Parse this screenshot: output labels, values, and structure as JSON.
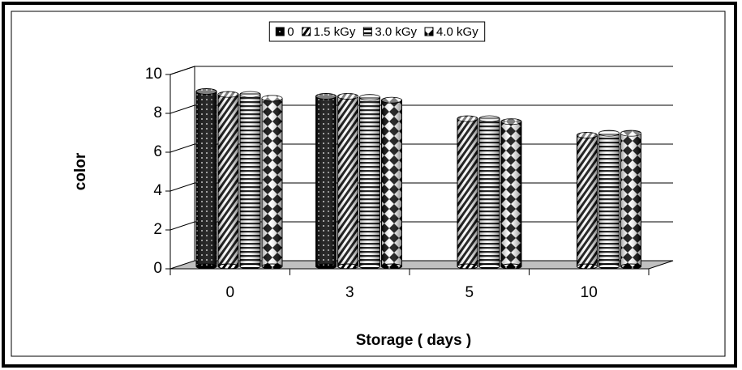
{
  "chart_data": {
    "type": "bar3d",
    "xlabel": "Storage ( days )",
    "ylabel": "color",
    "categories": [
      "0",
      "3",
      "5",
      "10"
    ],
    "series": [
      {
        "name": "0",
        "color": "#000000",
        "pattern": "dots",
        "values": [
          9.0,
          8.75,
          null,
          null
        ]
      },
      {
        "name": "1.5 kGy",
        "color": "#000000",
        "pattern": "diagonal",
        "values": [
          8.85,
          8.75,
          7.6,
          6.75
        ]
      },
      {
        "name": "3.0 kGy",
        "color": "#000000",
        "pattern": "horizontal",
        "values": [
          8.85,
          8.7,
          7.6,
          6.85
        ]
      },
      {
        "name": "4.0 kGy",
        "color": "#000000",
        "pattern": "diamond",
        "values": [
          8.65,
          8.55,
          7.45,
          6.85
        ]
      }
    ],
    "ylim": [
      0,
      10
    ],
    "yticks": [
      0,
      2,
      4,
      6,
      8,
      10
    ],
    "grid": true,
    "legend": "top"
  }
}
